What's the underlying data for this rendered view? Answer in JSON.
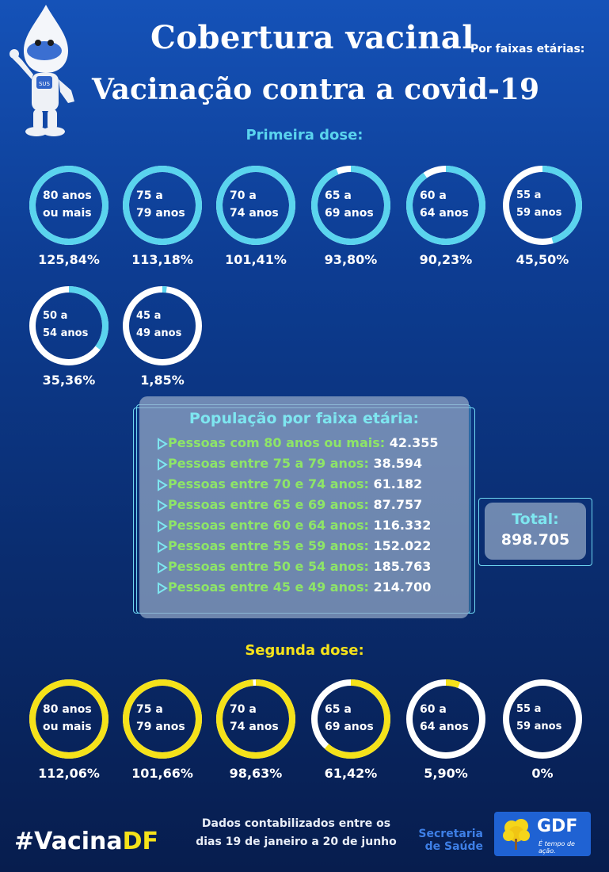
{
  "header": {
    "title": "Cobertura vacinal",
    "subtitle": "Por faixas etárias:",
    "title2": "Vacinação contra a covid-19"
  },
  "first_dose": {
    "heading": "Primeira dose:",
    "color": "#5ad4ee",
    "items": [
      {
        "label": "80 anos\nou mais",
        "value": "125,84%",
        "fraction": 1.0
      },
      {
        "label": "75 a\n79 anos",
        "value": "113,18%",
        "fraction": 1.0
      },
      {
        "label": "70 a\n74 anos",
        "value": "101,41%",
        "fraction": 1.0
      },
      {
        "label": "65 a\n69 anos",
        "value": "93,80%",
        "fraction": 0.938
      },
      {
        "label": "60 a\n64 anos",
        "value": "90,23%",
        "fraction": 0.9023
      },
      {
        "label": "55 a\n59 anos",
        "value": "45,50%",
        "fraction": 0.455
      },
      {
        "label": "50 a\n54 anos",
        "value": "35,36%",
        "fraction": 0.3536
      },
      {
        "label": "45 a\n49 anos",
        "value": "1,85%",
        "fraction": 0.0185
      }
    ]
  },
  "second_dose": {
    "heading": "Segunda dose:",
    "color": "#f5e21a",
    "items": [
      {
        "label": "80 anos\nou mais",
        "value": "112,06%",
        "fraction": 1.0
      },
      {
        "label": "75 a\n79 anos",
        "value": "101,66%",
        "fraction": 1.0
      },
      {
        "label": "70 a\n74 anos",
        "value": "98,63%",
        "fraction": 0.9863
      },
      {
        "label": "65 a\n69 anos",
        "value": "61,42%",
        "fraction": 0.6142
      },
      {
        "label": "60 a\n64 anos",
        "value": "5,90%",
        "fraction": 0.059
      },
      {
        "label": "55 a\n59 anos",
        "value": "0%",
        "fraction": 0.0
      }
    ]
  },
  "population": {
    "title": "População por faixa etária:",
    "rows": [
      {
        "label": "Pessoas com 80 anos ou mais:",
        "value": "42.355"
      },
      {
        "label": "Pessoas entre 75 a 79 anos:",
        "value": "38.594"
      },
      {
        "label": "Pessoas entre 70 e 74 anos:",
        "value": "61.182"
      },
      {
        "label": "Pessoas entre 65 e 69 anos:",
        "value": "87.757"
      },
      {
        "label": "Pessoas entre 60 e 64 anos:",
        "value": "116.332"
      },
      {
        "label": "Pessoas entre 55 e 59 anos:",
        "value": "152.022"
      },
      {
        "label": "Pessoas entre 50 e 54 anos:",
        "value": "185.763"
      },
      {
        "label": "Pessoas entre 45 e 49 anos:",
        "value": "214.700"
      }
    ],
    "total_label": "Total:",
    "total_value": "898.705"
  },
  "footer": {
    "hashtag_part1": "#Vacina",
    "hashtag_part2": "DF",
    "data_note_line1": "Dados contabilizados entre os",
    "data_note_line2": "dias 19 de janeiro a 20 de junho",
    "secretaria_line1": "Secretaria",
    "secretaria_line2": "de Saúde",
    "gdf": "GDF",
    "gdf_slogan": "É tempo de ação.",
    "mascot_badge": "SUS"
  }
}
